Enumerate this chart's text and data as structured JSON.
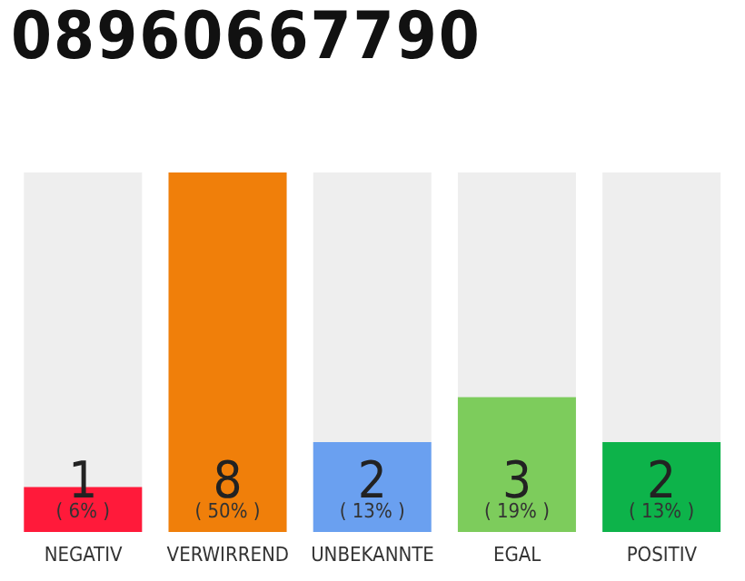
{
  "chart_data": {
    "type": "bar",
    "title": "08960667790",
    "categories": [
      "NEGATIV",
      "VERWIRREND",
      "UNBEKANNTE",
      "EGAL",
      "POSITIV"
    ],
    "values": [
      1,
      8,
      2,
      3,
      2
    ],
    "colors": [
      "#ff1a3a",
      "#f07f0a",
      "#6aa0f0",
      "#7dcc5c",
      "#0db34a"
    ],
    "value_labels": [
      "1\n( 6% )",
      "8\n( 50% )",
      "2\n( 13% )",
      "3\n( 19% )",
      "2\n( 13% )"
    ],
    "grid": false,
    "legend": false
  }
}
